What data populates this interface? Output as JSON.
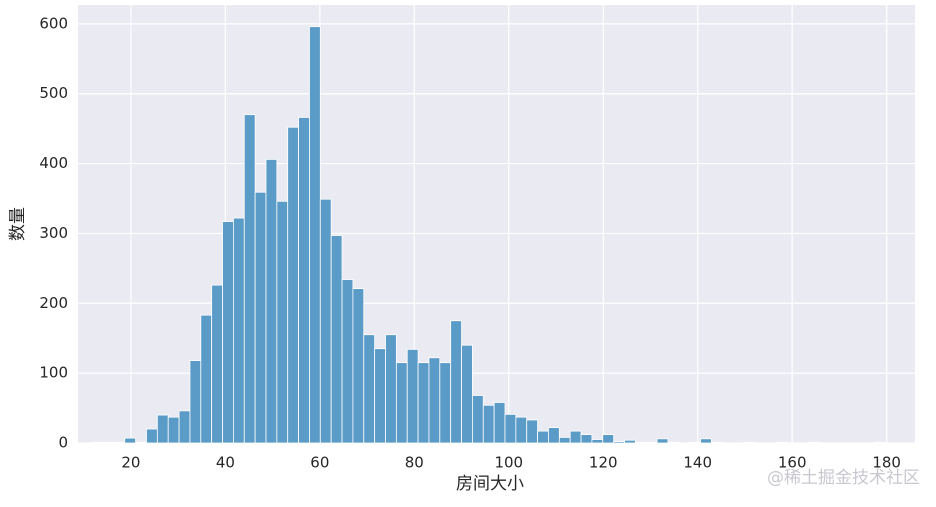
{
  "chart_data": {
    "type": "histogram",
    "xlabel": "房间大小",
    "ylabel": "数量",
    "watermark": "@稀土掘金技术社区",
    "bins": [
      11.8,
      14.1,
      16.4,
      18.7,
      21.0,
      23.3,
      25.6,
      27.9,
      30.2,
      32.5,
      34.8,
      37.1,
      39.4,
      41.7,
      44.0,
      46.3,
      48.6,
      50.9,
      53.2,
      55.5,
      57.8,
      60.1,
      62.4,
      64.7,
      67.0,
      69.3,
      71.6,
      73.9,
      76.2,
      78.5,
      80.8,
      83.1,
      85.4,
      87.7,
      90.0,
      92.3,
      94.6,
      96.9,
      99.2,
      101.5,
      103.8,
      106.1,
      108.4,
      110.7,
      113.0,
      115.3,
      117.6,
      119.9,
      122.2,
      124.5,
      126.8,
      129.1,
      131.4,
      133.7,
      136.0,
      138.3,
      140.6,
      142.9,
      145.2,
      147.5,
      149.8,
      152.1,
      154.4,
      156.7,
      159.0,
      161.3,
      163.6,
      165.9,
      168.2,
      170.5,
      172.8,
      175.1,
      177.4,
      179.7
    ],
    "values": [
      1,
      1,
      1,
      7,
      1,
      20,
      40,
      37,
      46,
      118,
      183,
      226,
      317,
      322,
      470,
      359,
      406,
      346,
      452,
      466,
      596,
      349,
      297,
      234,
      221,
      155,
      135,
      155,
      115,
      134,
      115,
      122,
      115,
      175,
      140,
      68,
      54,
      58,
      41,
      37,
      33,
      17,
      22,
      8,
      17,
      12,
      5,
      12,
      2,
      4,
      1,
      1,
      6,
      1,
      0,
      1,
      6,
      1,
      0,
      0,
      1,
      0,
      0,
      1,
      0,
      0,
      1,
      0,
      0,
      0,
      0,
      0,
      1
    ],
    "color": "#5b9bc8",
    "xlim": [
      8.8,
      186
    ],
    "ylim": [
      0,
      627
    ],
    "xticks": [
      20,
      40,
      60,
      80,
      100,
      120,
      140,
      160,
      180
    ],
    "yticks": [
      0,
      100,
      200,
      300,
      400,
      500,
      600
    ],
    "grid": true
  }
}
